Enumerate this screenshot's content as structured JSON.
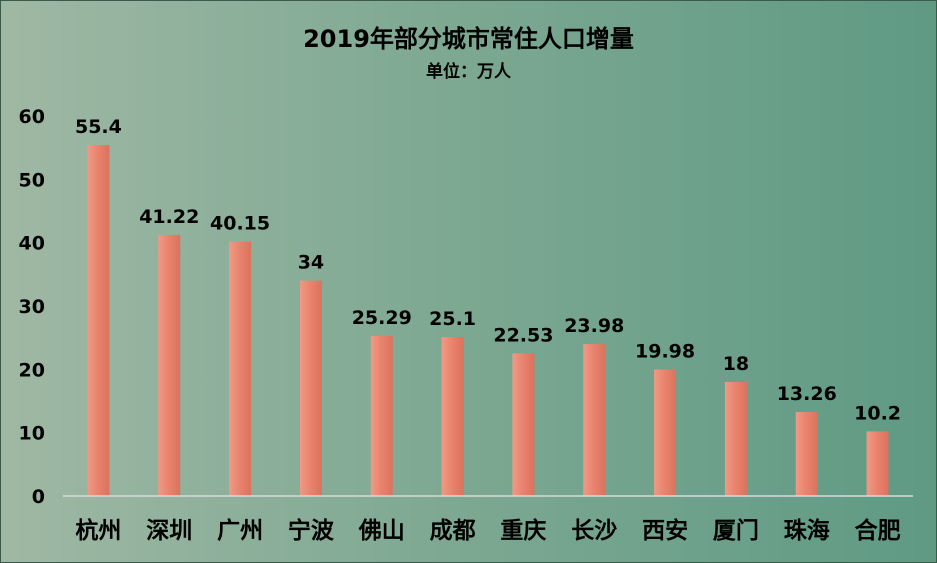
{
  "chart_data": {
    "type": "bar",
    "title": "2019年部分城市常住人口增量",
    "subtitle": "单位：万人",
    "categories": [
      "杭州",
      "深圳",
      "广州",
      "宁波",
      "佛山",
      "成都",
      "重庆",
      "长沙",
      "西安",
      "厦门",
      "珠海",
      "合肥"
    ],
    "values": [
      55.4,
      41.22,
      40.15,
      34,
      25.29,
      25.1,
      22.53,
      23.98,
      19.98,
      18,
      13.26,
      10.2
    ],
    "value_labels": [
      "55.4",
      "41.22",
      "40.15",
      "34",
      "25.29",
      "25.1",
      "22.53",
      "23.98",
      "19.98",
      "18",
      "13.26",
      "10.2"
    ],
    "ylim": [
      0,
      60
    ],
    "yticks": [
      "0",
      "10",
      "20",
      "30",
      "40",
      "50",
      "60"
    ],
    "xlabel": "",
    "ylabel": "",
    "grid": false,
    "legend": "none",
    "bar_color": "#ee8a74"
  }
}
